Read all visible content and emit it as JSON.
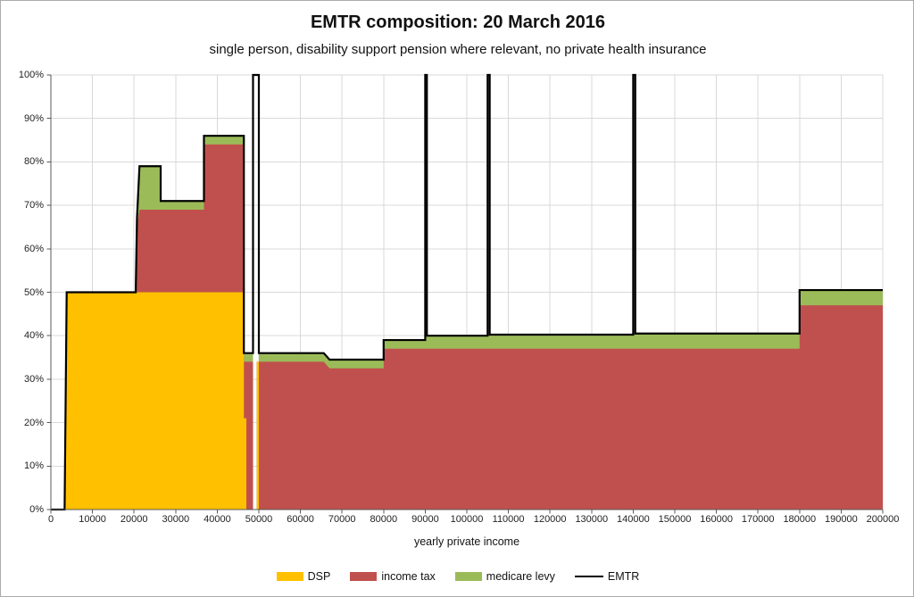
{
  "header": {
    "title": "EMTR composition: 20 March 2016",
    "subtitle": "single person, disability support pension where relevant, no private health insurance"
  },
  "chart_data": {
    "type": "area",
    "subtype": "stacked marginal-rate composition with step line overlay",
    "title": "EMTR composition: 20 March 2016",
    "subtitle": "single person, disability support pension where relevant, no private health insurance",
    "xlabel": "yearly private income",
    "ylabel": "",
    "grid": true,
    "x_axis": {
      "min": 0,
      "max": 200000,
      "ticks": [
        "0",
        "10000",
        "20000",
        "30000",
        "40000",
        "50000",
        "60000",
        "70000",
        "80000",
        "90000",
        "100000",
        "110000",
        "120000",
        "130000",
        "140000",
        "150000",
        "160000",
        "170000",
        "180000",
        "190000",
        "200000"
      ],
      "label": "yearly private income"
    },
    "y_axis": {
      "min": 0,
      "max": 100,
      "ticks": [
        "0%",
        "10%",
        "20%",
        "30%",
        "40%",
        "50%",
        "60%",
        "70%",
        "80%",
        "90%",
        "100%"
      ]
    },
    "series": [
      {
        "name": "DSP",
        "color": "#FFC000",
        "top_boundary": [
          [
            0,
            0
          ],
          [
            3300,
            0
          ],
          [
            3800,
            50
          ],
          [
            46400,
            50
          ],
          [
            46400,
            21
          ],
          [
            47000,
            21
          ],
          [
            47000,
            0
          ],
          [
            49500,
            0
          ],
          [
            49500,
            34
          ],
          [
            50000,
            34
          ],
          [
            50000,
            0
          ],
          [
            200000,
            0
          ]
        ]
      },
      {
        "name": "income tax",
        "color": "#C0504D",
        "top_boundary": [
          [
            0,
            0
          ],
          [
            3300,
            0
          ],
          [
            3800,
            50
          ],
          [
            20400,
            50
          ],
          [
            20700,
            65
          ],
          [
            21300,
            69
          ],
          [
            36800,
            69
          ],
          [
            36800,
            84
          ],
          [
            46400,
            84
          ],
          [
            46400,
            34
          ],
          [
            48600,
            34
          ],
          [
            48600,
            0
          ],
          [
            49500,
            0
          ],
          [
            49500,
            34
          ],
          [
            50000,
            34
          ],
          [
            65600,
            34
          ],
          [
            67000,
            32.5
          ],
          [
            80000,
            32.5
          ],
          [
            80000,
            37
          ],
          [
            180000,
            37
          ],
          [
            180000,
            47
          ],
          [
            200000,
            47
          ]
        ]
      },
      {
        "name": "medicare levy",
        "color": "#9BBB59",
        "top_boundary": [
          [
            0,
            0
          ],
          [
            3300,
            0
          ],
          [
            3800,
            50
          ],
          [
            20400,
            50
          ],
          [
            20700,
            67
          ],
          [
            21300,
            79
          ],
          [
            26400,
            79
          ],
          [
            26400,
            71
          ],
          [
            36800,
            71
          ],
          [
            36800,
            86
          ],
          [
            46400,
            86
          ],
          [
            46400,
            36
          ],
          [
            48600,
            36
          ],
          [
            48600,
            0
          ],
          [
            49500,
            0
          ],
          [
            49500,
            34
          ],
          [
            50000,
            34
          ],
          [
            50000,
            36
          ],
          [
            65600,
            36
          ],
          [
            67000,
            34.5
          ],
          [
            80000,
            34.5
          ],
          [
            80000,
            39
          ],
          [
            90000,
            39
          ],
          [
            90000,
            40
          ],
          [
            105000,
            40
          ],
          [
            105000,
            40.25
          ],
          [
            140000,
            40.25
          ],
          [
            140000,
            40.5
          ],
          [
            180000,
            40.5
          ],
          [
            180000,
            50.5
          ],
          [
            200000,
            50.5
          ]
        ]
      }
    ],
    "emtr_line": {
      "name": "EMTR",
      "color": "#000000",
      "points": [
        [
          0,
          0
        ],
        [
          3300,
          0
        ],
        [
          3800,
          50
        ],
        [
          20400,
          50
        ],
        [
          20700,
          67
        ],
        [
          21300,
          79
        ],
        [
          26400,
          79
        ],
        [
          26400,
          71
        ],
        [
          36800,
          71
        ],
        [
          36800,
          86
        ],
        [
          46400,
          86
        ],
        [
          46400,
          36
        ],
        [
          48600,
          36
        ],
        [
          48600,
          100
        ],
        [
          50000,
          100
        ],
        [
          50000,
          36
        ],
        [
          65600,
          36
        ],
        [
          67000,
          34.5
        ],
        [
          80000,
          34.5
        ],
        [
          80000,
          39
        ],
        [
          90000,
          39
        ],
        [
          90000,
          100
        ],
        [
          90400,
          100
        ],
        [
          90400,
          40
        ],
        [
          105000,
          40
        ],
        [
          105000,
          100
        ],
        [
          105500,
          100
        ],
        [
          105500,
          40.25
        ],
        [
          140000,
          40.25
        ],
        [
          140000,
          100
        ],
        [
          140500,
          100
        ],
        [
          140500,
          40.5
        ],
        [
          180000,
          40.5
        ],
        [
          180000,
          50.5
        ],
        [
          200000,
          50.5
        ]
      ]
    },
    "legend": {
      "position": "bottom",
      "items": [
        {
          "label": "DSP",
          "color": "#FFC000",
          "type": "box"
        },
        {
          "label": "income tax",
          "color": "#C0504D",
          "type": "box"
        },
        {
          "label": "medicare levy",
          "color": "#9BBB59",
          "type": "box"
        },
        {
          "label": "EMTR",
          "color": "#000000",
          "type": "line"
        }
      ]
    },
    "style": {
      "gridline_color": "#D9D9D9",
      "axis_color": "#595959",
      "background": "#FFFFFF"
    }
  }
}
